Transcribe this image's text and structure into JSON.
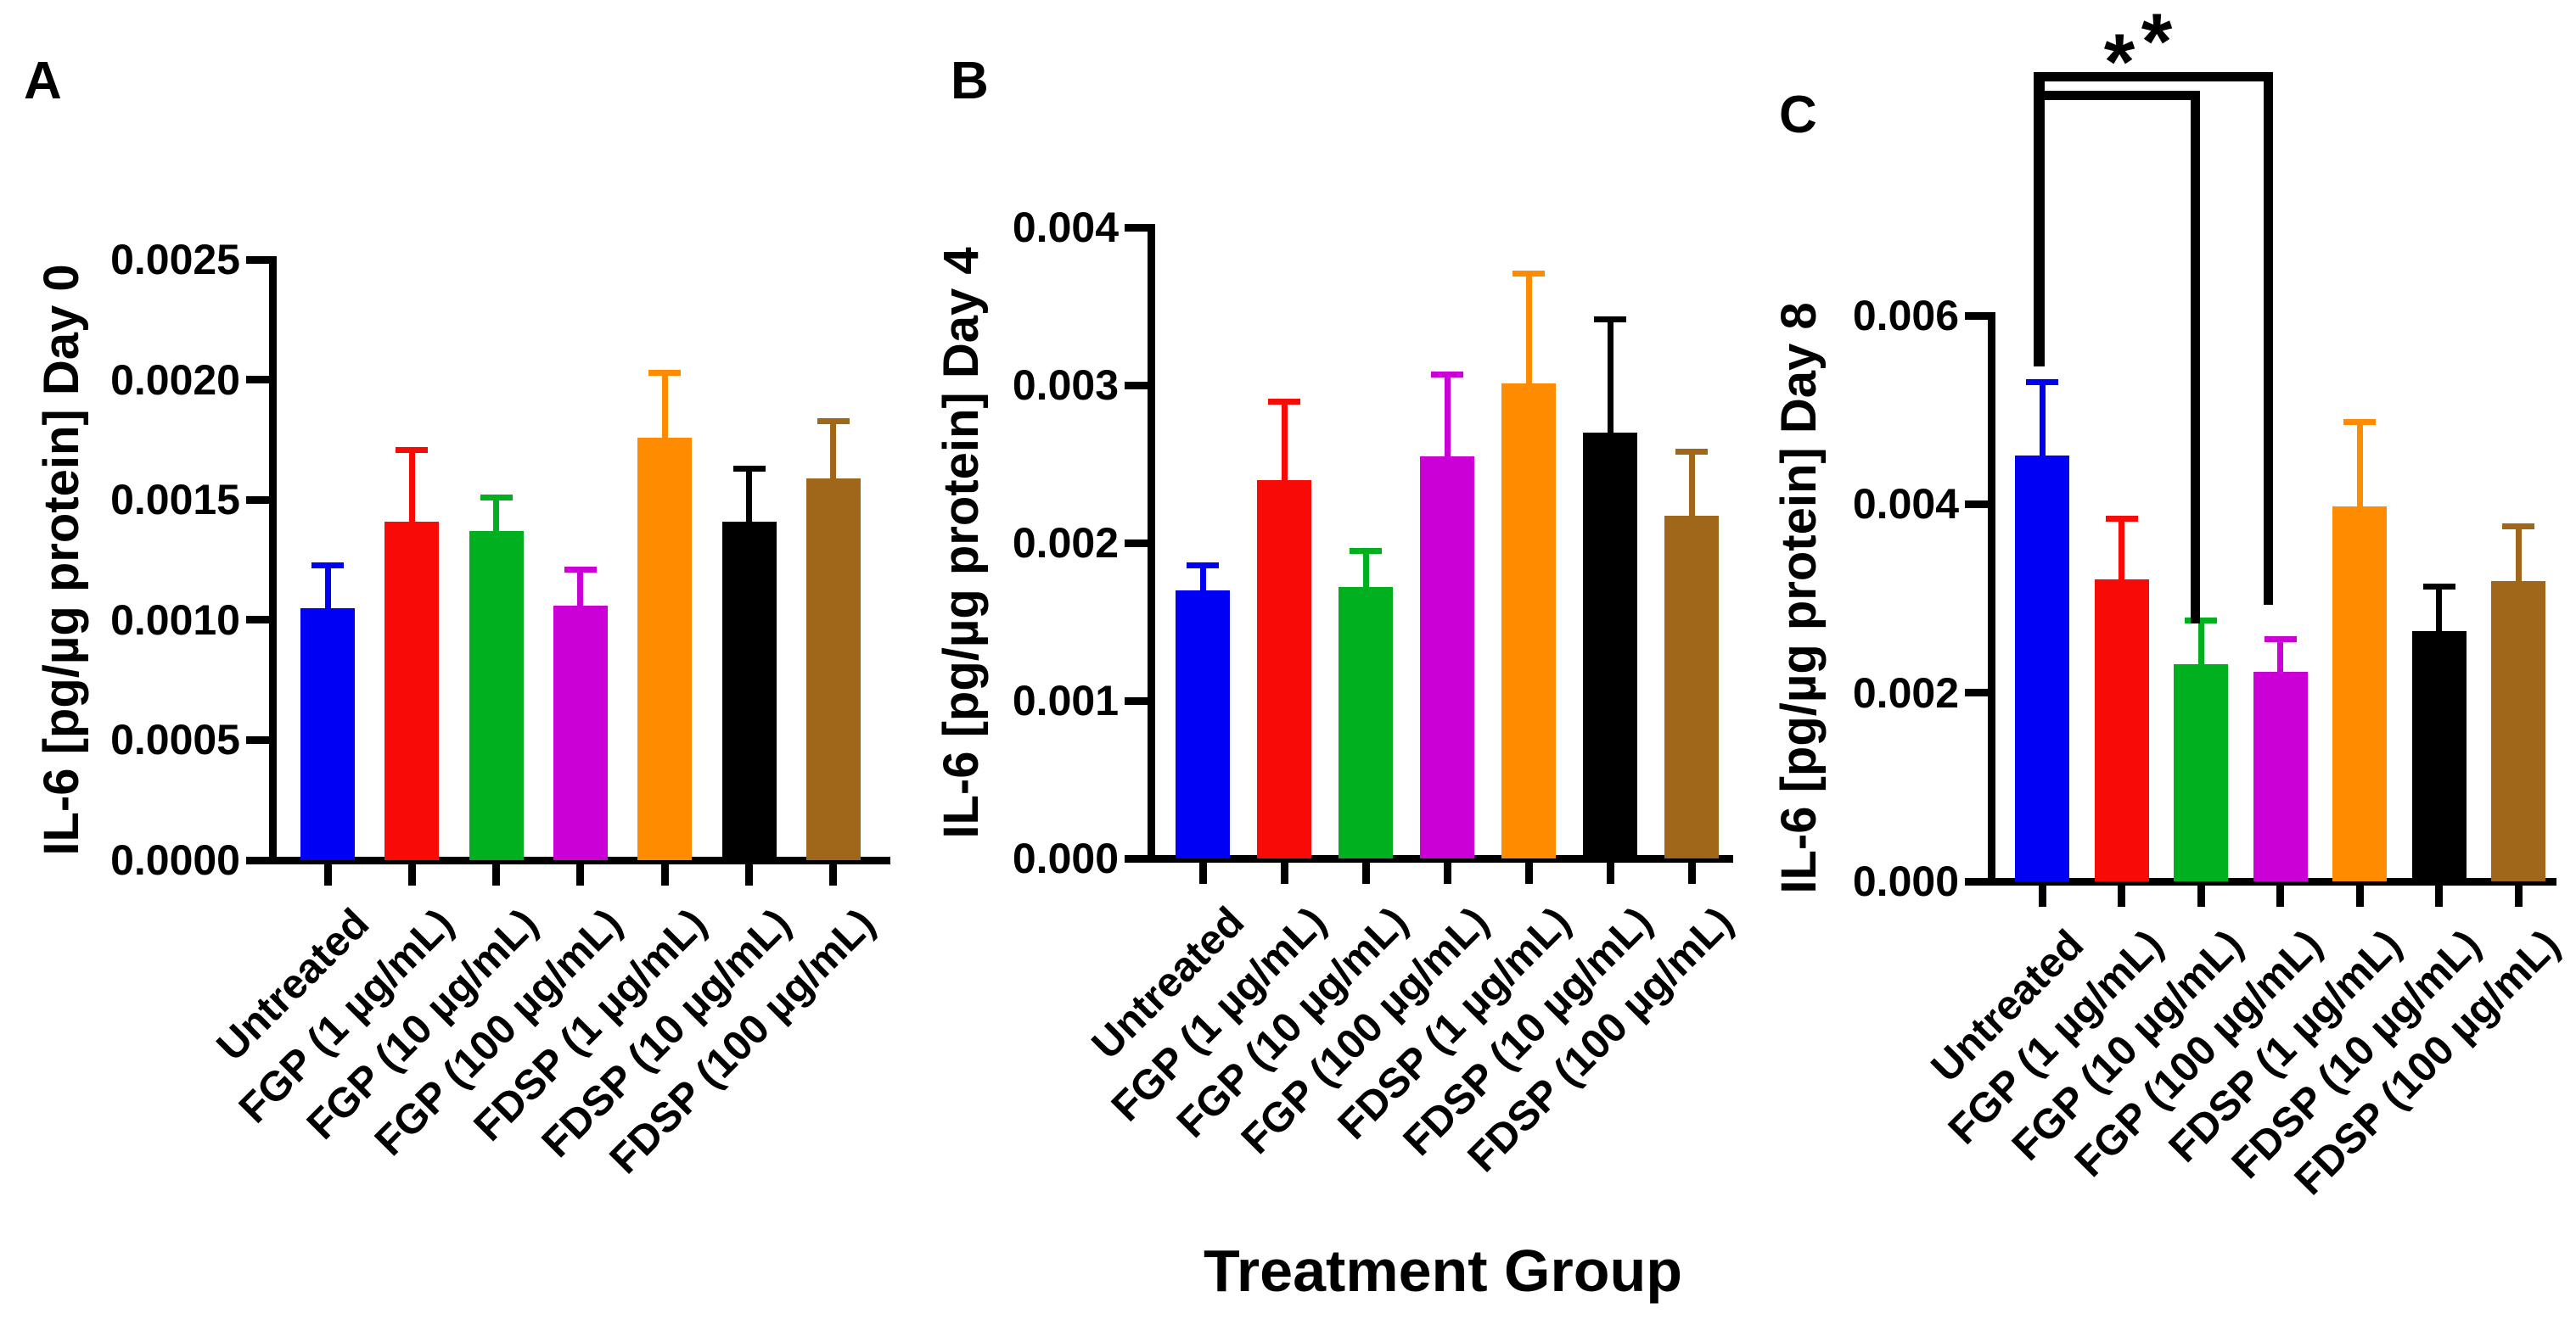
{
  "chart_data": [
    {
      "type": "bar",
      "panel_label": "A",
      "ylabel": "IL-6 [pg/µg protein] Day 0",
      "xlabel": "Treatment Group",
      "categories": [
        "Untreated",
        "FGP (1 µg/mL)",
        "FGP (10 µg/mL)",
        "FGP (100 µg/mL)",
        "FDSP (1 µg/mL)",
        "FDSP (10 µg/mL)",
        "FDSP (100 µg/mL)"
      ],
      "series": [
        {
          "name": "Untreated",
          "color": "#0000F5",
          "value": 0.00105,
          "error_top": 0.00123
        },
        {
          "name": "FGP (1 µg/mL)",
          "color": "#F80B06",
          "value": 0.00141,
          "error_top": 0.00171
        },
        {
          "name": "FGP (10 µg/mL)",
          "color": "#00B01E",
          "value": 0.00137,
          "error_top": 0.00151
        },
        {
          "name": "FGP (100 µg/mL)",
          "color": "#CB00D6",
          "value": 0.00106,
          "error_top": 0.00121
        },
        {
          "name": "FDSP (1 µg/mL)",
          "color": "#FF8C00",
          "value": 0.00176,
          "error_top": 0.00203
        },
        {
          "name": "FDSP (10 µg/mL)",
          "color": "#000000",
          "value": 0.00141,
          "error_top": 0.00163
        },
        {
          "name": "FDSP (100 µg/mL)",
          "color": "#A0661A",
          "value": 0.00159,
          "error_top": 0.00183
        }
      ],
      "ylim": [
        0,
        0.0025
      ],
      "ytick_labels": [
        "0.0000",
        "0.0005",
        "0.0010",
        "0.0015",
        "0.0020",
        "0.0025"
      ],
      "grid": false,
      "legend": "none"
    },
    {
      "type": "bar",
      "panel_label": "B",
      "ylabel": "IL-6 [pg/µg protein] Day 4",
      "xlabel": "Treatment Group",
      "categories": [
        "Untreated",
        "FGP (1 µg/mL)",
        "FGP (10 µg/mL)",
        "FGP (100 µg/mL)",
        "FDSP (1 µg/mL)",
        "FDSP (10 µg/mL)",
        "FDSP (100 µg/mL)"
      ],
      "series": [
        {
          "name": "Untreated",
          "color": "#0000F5",
          "value": 0.0017,
          "error_top": 0.00186
        },
        {
          "name": "FGP (1 µg/mL)",
          "color": "#F80B06",
          "value": 0.0024,
          "error_top": 0.0029
        },
        {
          "name": "FGP (10 µg/mL)",
          "color": "#00B01E",
          "value": 0.00172,
          "error_top": 0.00195
        },
        {
          "name": "FGP (100 µg/mL)",
          "color": "#CB00D6",
          "value": 0.00255,
          "error_top": 0.00307
        },
        {
          "name": "FDSP (1 µg/mL)",
          "color": "#FF8C00",
          "value": 0.00301,
          "error_top": 0.00371
        },
        {
          "name": "FDSP (10 µg/mL)",
          "color": "#000000",
          "value": 0.0027,
          "error_top": 0.00342
        },
        {
          "name": "FDSP (100 µg/mL)",
          "color": "#A0661A",
          "value": 0.00217,
          "error_top": 0.00258
        }
      ],
      "ylim": [
        0,
        0.004
      ],
      "ytick_labels": [
        "0.000",
        "0.001",
        "0.002",
        "0.003",
        "0.004"
      ],
      "grid": false,
      "legend": "none"
    },
    {
      "type": "bar",
      "panel_label": "C",
      "ylabel": "IL-6 [pg/µg protein] Day 8",
      "xlabel": "Treatment Group",
      "categories": [
        "Untreated",
        "FGP (1 µg/mL)",
        "FGP (10 µg/mL)",
        "FGP (100 µg/mL)",
        "FDSP (1 µg/mL)",
        "FDSP (10 µg/mL)",
        "FDSP (100 µg/mL)"
      ],
      "series": [
        {
          "name": "Untreated",
          "color": "#0000F5",
          "value": 0.00452,
          "error_top": 0.0053
        },
        {
          "name": "FGP (1 µg/mL)",
          "color": "#F80B06",
          "value": 0.0032,
          "error_top": 0.00385
        },
        {
          "name": "FGP (10 µg/mL)",
          "color": "#00B01E",
          "value": 0.0023,
          "error_top": 0.00277
        },
        {
          "name": "FGP (100 µg/mL)",
          "color": "#CB00D6",
          "value": 0.00222,
          "error_top": 0.00257
        },
        {
          "name": "FDSP (1 µg/mL)",
          "color": "#FF8C00",
          "value": 0.00398,
          "error_top": 0.00488
        },
        {
          "name": "FDSP (10 µg/mL)",
          "color": "#000000",
          "value": 0.00265,
          "error_top": 0.00313
        },
        {
          "name": "FDSP (100 µg/mL)",
          "color": "#A0661A",
          "value": 0.00318,
          "error_top": 0.00377
        }
      ],
      "ylim": [
        0,
        0.006
      ],
      "ytick_labels": [
        "0.000",
        "0.002",
        "0.004",
        "0.006"
      ],
      "grid": false,
      "legend": "none",
      "significance": {
        "label": "**",
        "comparisons": [
          [
            "Untreated",
            "FGP (10 µg/mL)"
          ],
          [
            "Untreated",
            "FGP (100 µg/mL)"
          ]
        ]
      }
    }
  ]
}
